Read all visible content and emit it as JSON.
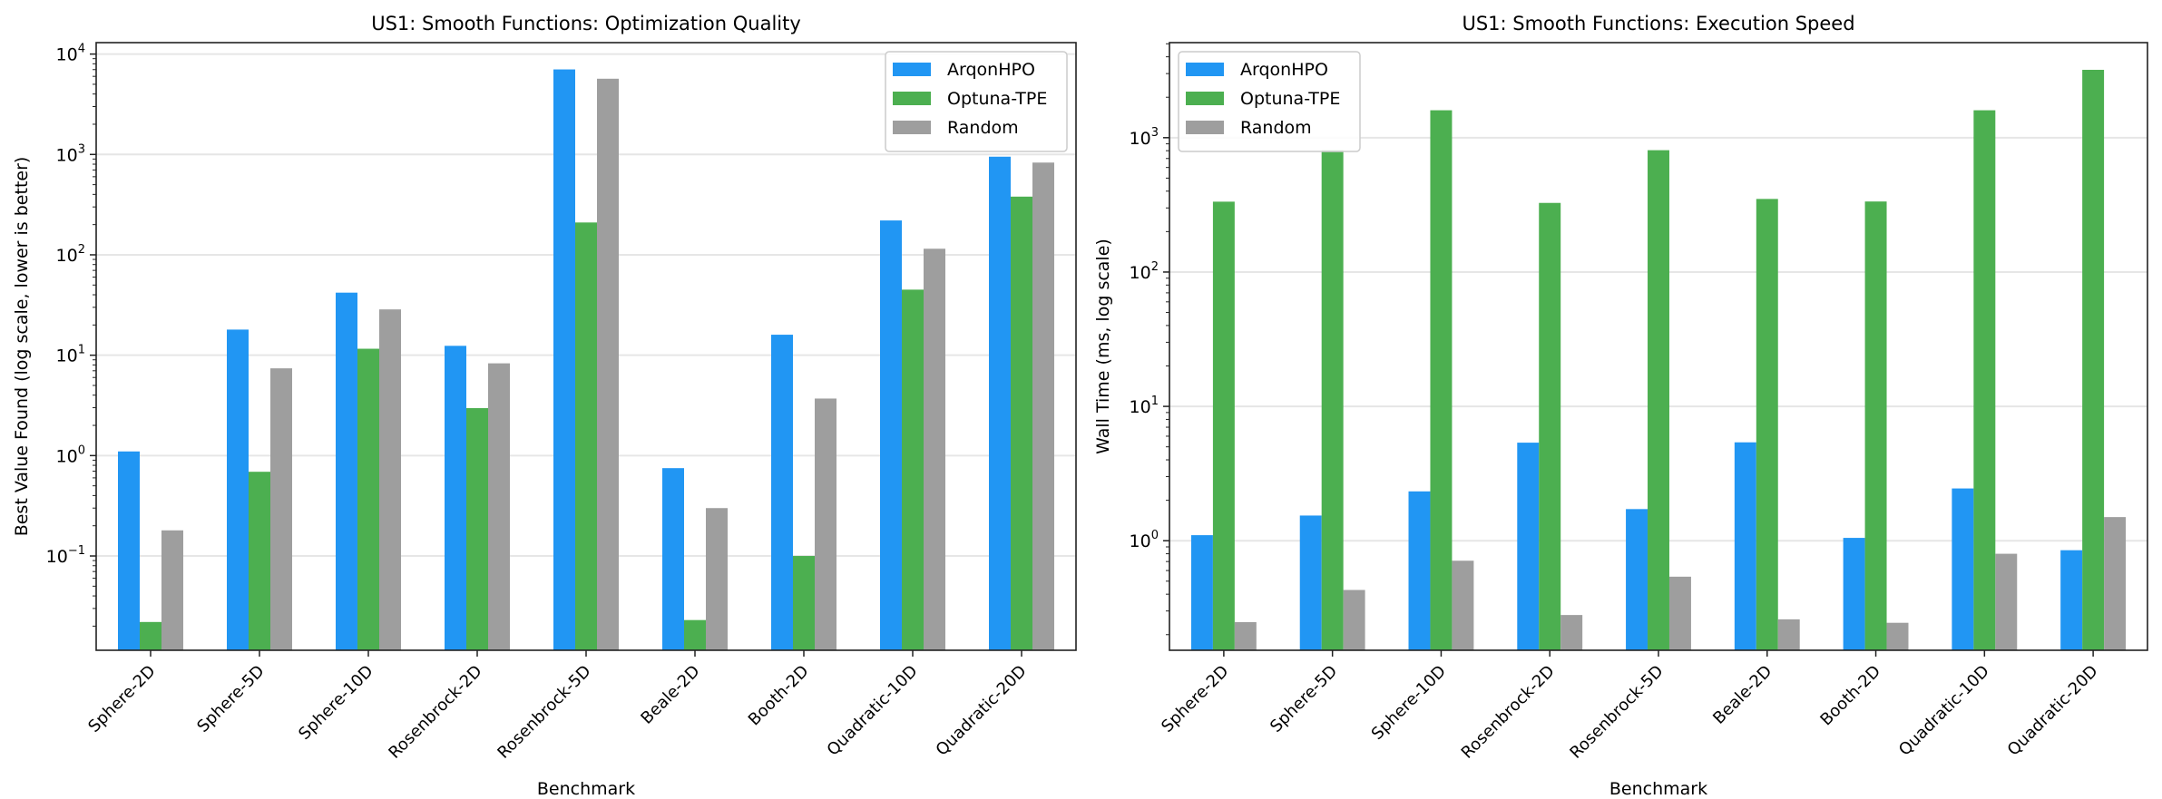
{
  "chart_data": [
    {
      "type": "bar",
      "title": "US1: Smooth Functions: Optimization Quality",
      "xlabel": "Benchmark",
      "ylabel": "Best Value Found (log scale, lower is better)",
      "yscale": "log",
      "ylim": [
        0.0115,
        13000
      ],
      "yticks": [
        0.1,
        1,
        10,
        100,
        1000,
        10000
      ],
      "ytick_labels": [
        {
          "base": "10",
          "exp": "−1"
        },
        {
          "base": "10",
          "exp": "0"
        },
        {
          "base": "10",
          "exp": "1"
        },
        {
          "base": "10",
          "exp": "2"
        },
        {
          "base": "10",
          "exp": "3"
        },
        {
          "base": "10",
          "exp": "4"
        }
      ],
      "grid": "y",
      "legend_placement": "top-right",
      "categories": [
        "Sphere-2D",
        "Sphere-5D",
        "Sphere-10D",
        "Rosenbrock-2D",
        "Rosenbrock-5D",
        "Beale-2D",
        "Booth-2D",
        "Quadratic-10D",
        "Quadratic-20D"
      ],
      "series": [
        {
          "name": "ArqonHPO",
          "color": "#2196F3",
          "values": [
            1.1,
            18,
            42,
            12.4,
            7030,
            0.75,
            16,
            220,
            950
          ]
        },
        {
          "name": "Optuna-TPE",
          "color": "#4CAF50",
          "values": [
            0.022,
            0.69,
            11.6,
            2.97,
            210,
            0.023,
            0.1,
            45,
            380
          ]
        },
        {
          "name": "Random",
          "color": "#9E9E9E",
          "values": [
            0.18,
            7.4,
            28.6,
            8.3,
            5680,
            0.3,
            3.7,
            115,
            830
          ]
        }
      ]
    },
    {
      "type": "bar",
      "title": "US1: Smooth Functions: Execution Speed",
      "xlabel": "Benchmark",
      "ylabel": "Wall Time (ms, log scale)",
      "yscale": "log",
      "ylim": [
        0.153,
        5100
      ],
      "yticks": [
        1,
        10,
        100,
        1000
      ],
      "ytick_labels": [
        {
          "base": "10",
          "exp": "0"
        },
        {
          "base": "10",
          "exp": "1"
        },
        {
          "base": "10",
          "exp": "2"
        },
        {
          "base": "10",
          "exp": "3"
        }
      ],
      "grid": "y",
      "legend_placement": "top-left",
      "categories": [
        "Sphere-2D",
        "Sphere-5D",
        "Sphere-10D",
        "Rosenbrock-2D",
        "Rosenbrock-5D",
        "Beale-2D",
        "Booth-2D",
        "Quadratic-10D",
        "Quadratic-20D"
      ],
      "series": [
        {
          "name": "ArqonHPO",
          "color": "#2196F3",
          "values": [
            1.1,
            1.54,
            2.33,
            5.37,
            1.72,
            5.4,
            1.05,
            2.45,
            0.85
          ]
        },
        {
          "name": "Optuna-TPE",
          "color": "#4CAF50",
          "values": [
            334,
            807,
            1600,
            327,
            807,
            350,
            335,
            1600,
            3200
          ]
        },
        {
          "name": "Random",
          "color": "#9E9E9E",
          "values": [
            0.248,
            0.43,
            0.71,
            0.28,
            0.54,
            0.26,
            0.245,
            0.8,
            1.5
          ]
        }
      ]
    }
  ]
}
